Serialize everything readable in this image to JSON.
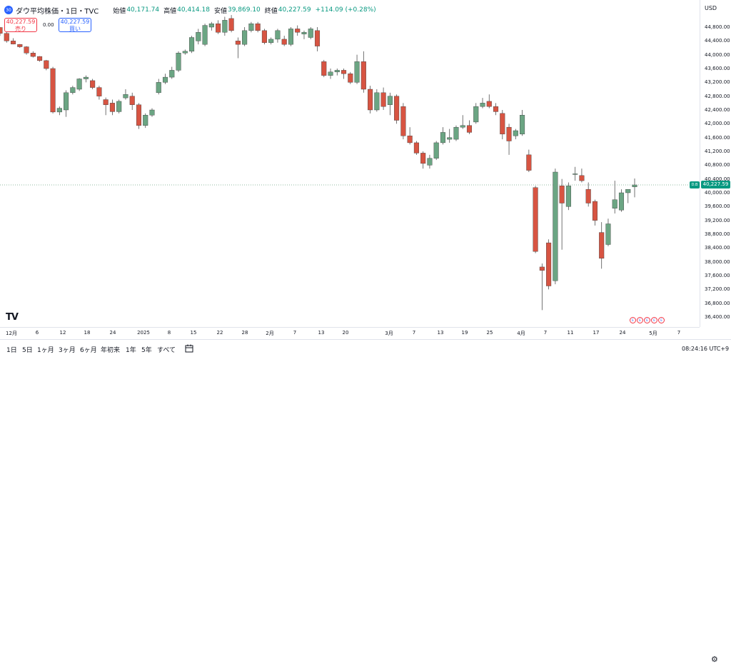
{
  "header": {
    "symbol_badge": "30",
    "title": "ダウ平均株価・1日・TVC",
    "open_label": "始値",
    "open_value": "40,171.74",
    "high_label": "高値",
    "high_value": "40,414.18",
    "low_label": "安値",
    "low_value": "39,869.10",
    "close_label": "終値",
    "close_value": "40,227.59",
    "change": "+114.09 (+0.28%)"
  },
  "trade": {
    "sell_price": "40,227.59",
    "sell_label": "売り",
    "spread": "0.00",
    "buy_price": "40,227.59",
    "buy_label": "買い"
  },
  "price_axis": {
    "currency": "USD",
    "ticks": [
      "44,800.00",
      "44,400.00",
      "44,000.00",
      "43,600.00",
      "43,200.00",
      "42,800.00",
      "42,400.00",
      "42,000.00",
      "41,600.00",
      "41,200.00",
      "40,800.00",
      "40,400.00",
      "40,000.00",
      "39,600.00",
      "39,200.00",
      "38,800.00",
      "38,400.00",
      "38,000.00",
      "37,600.00",
      "37,200.00",
      "36,800.00",
      "36,400.00"
    ],
    "last_price_label": "40,227.59",
    "last_tag": "D.B"
  },
  "time_axis": {
    "ticks": [
      "12月",
      "6",
      "12",
      "18",
      "24",
      "2025",
      "8",
      "15",
      "22",
      "28",
      "2月",
      "7",
      "13",
      "20",
      "3月",
      "7",
      "13",
      "19",
      "25",
      "4月",
      "7",
      "11",
      "17",
      "24",
      "5月",
      "7"
    ]
  },
  "colors": {
    "up": "#6ba583",
    "down": "#d75442",
    "accent": "#2962ff"
  },
  "bottom": {
    "ranges": [
      "1日",
      "5日",
      "1ヶ月",
      "3ヶ月",
      "6ヶ月",
      "年初来",
      "1年",
      "5年",
      "すべて"
    ],
    "clock": "08:24:16 UTC+9"
  },
  "chart_data": {
    "type": "candlestick",
    "y_range": [
      36100,
      45150
    ],
    "last_price": 40227.59,
    "grid": false,
    "candles": [
      {
        "o": 44790,
        "h": 44800,
        "l": 44550,
        "c": 44620
      },
      {
        "o": 44620,
        "h": 44660,
        "l": 44350,
        "c": 44400
      },
      {
        "o": 44400,
        "h": 44480,
        "l": 44300,
        "c": 44310
      },
      {
        "o": 44300,
        "h": 44310,
        "l": 44200,
        "c": 44230
      },
      {
        "o": 44230,
        "h": 44250,
        "l": 44000,
        "c": 44050
      },
      {
        "o": 44050,
        "h": 44100,
        "l": 43920,
        "c": 43950
      },
      {
        "o": 43950,
        "h": 43960,
        "l": 43800,
        "c": 43830
      },
      {
        "o": 43830,
        "h": 43850,
        "l": 43550,
        "c": 43600
      },
      {
        "o": 43600,
        "h": 43650,
        "l": 42300,
        "c": 42340
      },
      {
        "o": 42340,
        "h": 42500,
        "l": 42250,
        "c": 42450
      },
      {
        "o": 42400,
        "h": 42970,
        "l": 42200,
        "c": 42900
      },
      {
        "o": 42900,
        "h": 43100,
        "l": 42850,
        "c": 43050
      },
      {
        "o": 43000,
        "h": 43320,
        "l": 42950,
        "c": 43300
      },
      {
        "o": 43300,
        "h": 43400,
        "l": 43200,
        "c": 43350
      },
      {
        "o": 43250,
        "h": 43300,
        "l": 43000,
        "c": 43050
      },
      {
        "o": 43050,
        "h": 43100,
        "l": 42700,
        "c": 42800
      },
      {
        "o": 42700,
        "h": 42760,
        "l": 42250,
        "c": 42550
      },
      {
        "o": 42600,
        "h": 42700,
        "l": 42250,
        "c": 42350
      },
      {
        "o": 42350,
        "h": 42700,
        "l": 42300,
        "c": 42650
      },
      {
        "o": 42750,
        "h": 43000,
        "l": 42700,
        "c": 42850
      },
      {
        "o": 42800,
        "h": 42900,
        "l": 42400,
        "c": 42550
      },
      {
        "o": 42550,
        "h": 42600,
        "l": 41850,
        "c": 41950
      },
      {
        "o": 41950,
        "h": 42300,
        "l": 41880,
        "c": 42250
      },
      {
        "o": 42250,
        "h": 42450,
        "l": 42200,
        "c": 42400
      },
      {
        "o": 42900,
        "h": 43300,
        "l": 42850,
        "c": 43200
      },
      {
        "o": 43200,
        "h": 43450,
        "l": 43150,
        "c": 43350
      },
      {
        "o": 43350,
        "h": 43650,
        "l": 43300,
        "c": 43550
      },
      {
        "o": 43550,
        "h": 44100,
        "l": 43500,
        "c": 44050
      },
      {
        "o": 44050,
        "h": 44150,
        "l": 44000,
        "c": 44100
      },
      {
        "o": 44100,
        "h": 44550,
        "l": 44050,
        "c": 44500
      },
      {
        "o": 44400,
        "h": 44750,
        "l": 44300,
        "c": 44650
      },
      {
        "o": 44300,
        "h": 44900,
        "l": 44250,
        "c": 44850
      },
      {
        "o": 44800,
        "h": 44950,
        "l": 44700,
        "c": 44900
      },
      {
        "o": 44900,
        "h": 45000,
        "l": 44600,
        "c": 44650
      },
      {
        "o": 44650,
        "h": 45100,
        "l": 44550,
        "c": 45000
      },
      {
        "o": 45050,
        "h": 45150,
        "l": 44650,
        "c": 44700
      },
      {
        "o": 44400,
        "h": 44500,
        "l": 43900,
        "c": 44300
      },
      {
        "o": 44300,
        "h": 44800,
        "l": 44250,
        "c": 44700
      },
      {
        "o": 44700,
        "h": 44950,
        "l": 44650,
        "c": 44900
      },
      {
        "o": 44900,
        "h": 44950,
        "l": 44650,
        "c": 44700
      },
      {
        "o": 44700,
        "h": 44750,
        "l": 44300,
        "c": 44350
      },
      {
        "o": 44350,
        "h": 44500,
        "l": 44300,
        "c": 44450
      },
      {
        "o": 44450,
        "h": 44750,
        "l": 44350,
        "c": 44700
      },
      {
        "o": 44450,
        "h": 44550,
        "l": 44250,
        "c": 44300
      },
      {
        "o": 44300,
        "h": 44800,
        "l": 44250,
        "c": 44750
      },
      {
        "o": 44750,
        "h": 44850,
        "l": 44550,
        "c": 44650
      },
      {
        "o": 44600,
        "h": 44700,
        "l": 44450,
        "c": 44650
      },
      {
        "o": 44500,
        "h": 44800,
        "l": 44450,
        "c": 44750
      },
      {
        "o": 44700,
        "h": 44800,
        "l": 44100,
        "c": 44250
      },
      {
        "o": 43800,
        "h": 43850,
        "l": 43350,
        "c": 43400
      },
      {
        "o": 43400,
        "h": 43600,
        "l": 43300,
        "c": 43500
      },
      {
        "o": 43500,
        "h": 43600,
        "l": 43400,
        "c": 43550
      },
      {
        "o": 43550,
        "h": 43600,
        "l": 43300,
        "c": 43450
      },
      {
        "o": 43450,
        "h": 43500,
        "l": 43150,
        "c": 43200
      },
      {
        "o": 43200,
        "h": 44000,
        "l": 43150,
        "c": 43800
      },
      {
        "o": 43800,
        "h": 44100,
        "l": 42900,
        "c": 43000
      },
      {
        "o": 43000,
        "h": 43100,
        "l": 42300,
        "c": 42400
      },
      {
        "o": 42400,
        "h": 43000,
        "l": 42350,
        "c": 42900
      },
      {
        "o": 42900,
        "h": 43050,
        "l": 42400,
        "c": 42500
      },
      {
        "o": 42550,
        "h": 42900,
        "l": 42250,
        "c": 42800
      },
      {
        "o": 42800,
        "h": 42850,
        "l": 42000,
        "c": 42100
      },
      {
        "o": 42500,
        "h": 42600,
        "l": 41550,
        "c": 41650
      },
      {
        "o": 41650,
        "h": 41900,
        "l": 41400,
        "c": 41450
      },
      {
        "o": 41450,
        "h": 41500,
        "l": 41100,
        "c": 41150
      },
      {
        "o": 41150,
        "h": 41200,
        "l": 40700,
        "c": 40850
      },
      {
        "o": 40800,
        "h": 41100,
        "l": 40700,
        "c": 41000
      },
      {
        "o": 41000,
        "h": 41500,
        "l": 40950,
        "c": 41450
      },
      {
        "o": 41450,
        "h": 41900,
        "l": 41400,
        "c": 41750
      },
      {
        "o": 41550,
        "h": 41850,
        "l": 41450,
        "c": 41600
      },
      {
        "o": 41550,
        "h": 41950,
        "l": 41500,
        "c": 41900
      },
      {
        "o": 41900,
        "h": 42250,
        "l": 41850,
        "c": 41950
      },
      {
        "o": 41950,
        "h": 42100,
        "l": 41700,
        "c": 41750
      },
      {
        "o": 42050,
        "h": 42600,
        "l": 42000,
        "c": 42500
      },
      {
        "o": 42500,
        "h": 42750,
        "l": 42450,
        "c": 42600
      },
      {
        "o": 42650,
        "h": 42850,
        "l": 42450,
        "c": 42500
      },
      {
        "o": 42500,
        "h": 42600,
        "l": 42250,
        "c": 42350
      },
      {
        "o": 42300,
        "h": 42400,
        "l": 41550,
        "c": 41700
      },
      {
        "o": 41900,
        "h": 42000,
        "l": 41100,
        "c": 41500
      },
      {
        "o": 41650,
        "h": 41850,
        "l": 41550,
        "c": 41800
      },
      {
        "o": 41700,
        "h": 42400,
        "l": 41650,
        "c": 42250
      },
      {
        "o": 41100,
        "h": 41250,
        "l": 40600,
        "c": 40650
      },
      {
        "o": 40150,
        "h": 40200,
        "l": 38250,
        "c": 38300
      },
      {
        "o": 37850,
        "h": 37950,
        "l": 36600,
        "c": 37750
      },
      {
        "o": 38550,
        "h": 38650,
        "l": 37200,
        "c": 37300
      },
      {
        "o": 37450,
        "h": 40700,
        "l": 37350,
        "c": 40600
      },
      {
        "o": 40200,
        "h": 40400,
        "l": 38350,
        "c": 39700
      },
      {
        "o": 39600,
        "h": 40300,
        "l": 39500,
        "c": 40200
      },
      {
        "o": 40550,
        "h": 40750,
        "l": 40350,
        "c": 40550
      },
      {
        "o": 40500,
        "h": 40700,
        "l": 40300,
        "c": 40350
      },
      {
        "o": 40100,
        "h": 40300,
        "l": 39600,
        "c": 39700
      },
      {
        "o": 39750,
        "h": 39800,
        "l": 39050,
        "c": 39200
      },
      {
        "o": 38850,
        "h": 39150,
        "l": 37800,
        "c": 38100
      },
      {
        "o": 38500,
        "h": 39250,
        "l": 38450,
        "c": 39100
      },
      {
        "o": 39550,
        "h": 40350,
        "l": 39400,
        "c": 39800
      },
      {
        "o": 39500,
        "h": 40100,
        "l": 39450,
        "c": 40000
      },
      {
        "o": 40000,
        "h": 40100,
        "l": 39700,
        "c": 40100
      },
      {
        "o": 40171.74,
        "h": 40414.18,
        "l": 39869.1,
        "c": 40227.59
      }
    ]
  }
}
